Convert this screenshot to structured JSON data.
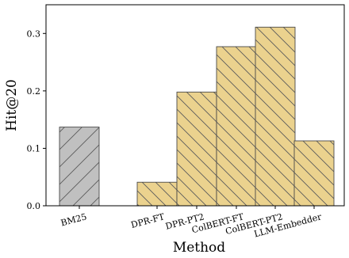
{
  "chart_data": {
    "type": "bar",
    "categories": [
      "BM25",
      "DPR-FT",
      "DPR-PT2",
      "ColBERT-FT",
      "ColBERT-PT2",
      "LLM-Embedder"
    ],
    "values": [
      0.137,
      0.041,
      0.198,
      0.277,
      0.311,
      0.113
    ],
    "xlabel": "Method",
    "ylabel": "Hit@20",
    "ylim": [
      0,
      0.35
    ],
    "yticks": [
      "0.0",
      "0.1",
      "0.2",
      "0.3"
    ],
    "grid": false,
    "legend": "none",
    "colors": {
      "BM25": "#c0c0c0",
      "others": "#ebd28e",
      "edge": "#4a4a4a",
      "hatch": "#5a5a5a"
    }
  }
}
